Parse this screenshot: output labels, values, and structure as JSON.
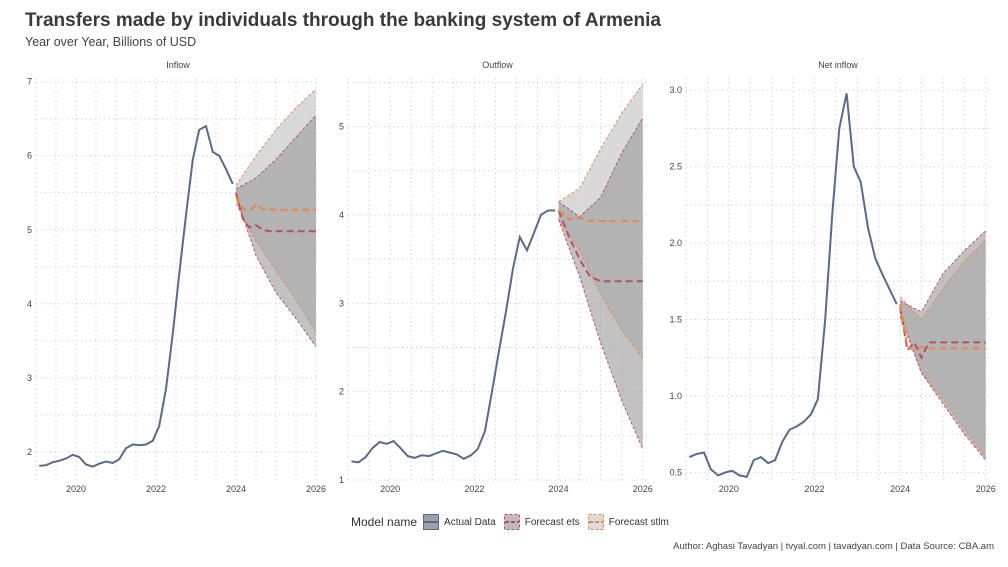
{
  "title": "Transfers made by individuals through the banking system of Armenia",
  "subtitle": "Year over Year, Billions of USD",
  "caption": "Author: Aghasi Tavadyan   |   tvyal.com   |   tavadyan.com   |   Data Source: CBA.am",
  "legend": {
    "title": "Model name",
    "items": [
      {
        "label": "Actual Data",
        "color": "#5a6b89",
        "style": "solid"
      },
      {
        "label": "Forecast ets",
        "color": "#c0456a",
        "style": "dashed"
      },
      {
        "label": "Forecast stlm",
        "color": "#e98646",
        "style": "dashed"
      }
    ]
  },
  "chart_data": [
    {
      "type": "line",
      "panel": "Inflow",
      "xticks": [
        2020,
        2022,
        2024,
        2026
      ],
      "yticks": [
        2,
        3,
        4,
        5,
        6,
        7
      ],
      "xlim": [
        2019.0,
        2026.1
      ],
      "ylim": [
        1.62,
        7.05
      ],
      "actual": [
        [
          2019.08,
          1.81
        ],
        [
          2019.25,
          1.82
        ],
        [
          2019.42,
          1.86
        ],
        [
          2019.58,
          1.88
        ],
        [
          2019.75,
          1.91
        ],
        [
          2019.92,
          1.96
        ],
        [
          2020.08,
          1.93
        ],
        [
          2020.25,
          1.83
        ],
        [
          2020.42,
          1.8
        ],
        [
          2020.58,
          1.84
        ],
        [
          2020.75,
          1.87
        ],
        [
          2020.92,
          1.85
        ],
        [
          2021.08,
          1.9
        ],
        [
          2021.25,
          2.05
        ],
        [
          2021.42,
          2.1
        ],
        [
          2021.58,
          2.09
        ],
        [
          2021.75,
          2.1
        ],
        [
          2021.92,
          2.15
        ],
        [
          2022.08,
          2.35
        ],
        [
          2022.25,
          2.85
        ],
        [
          2022.42,
          3.6
        ],
        [
          2022.58,
          4.4
        ],
        [
          2022.75,
          5.2
        ],
        [
          2022.92,
          5.95
        ],
        [
          2023.08,
          6.35
        ],
        [
          2023.25,
          6.4
        ],
        [
          2023.42,
          6.05
        ],
        [
          2023.58,
          6.0
        ],
        [
          2023.75,
          5.82
        ],
        [
          2023.92,
          5.62
        ]
      ],
      "forecast_ets": {
        "mean": [
          [
            2024.0,
            5.5
          ],
          [
            2024.17,
            5.15
          ],
          [
            2024.33,
            5.03
          ],
          [
            2024.5,
            5.06
          ],
          [
            2024.67,
            5.0
          ],
          [
            2024.83,
            4.98
          ],
          [
            2025.0,
            4.98
          ],
          [
            2026.0,
            4.98
          ]
        ],
        "upper": [
          [
            2024.0,
            5.55
          ],
          [
            2024.5,
            5.7
          ],
          [
            2025.0,
            5.95
          ],
          [
            2025.5,
            6.25
          ],
          [
            2026.0,
            6.55
          ]
        ],
        "lower": [
          [
            2024.0,
            5.45
          ],
          [
            2024.5,
            4.65
          ],
          [
            2025.0,
            4.15
          ],
          [
            2025.5,
            3.8
          ],
          [
            2026.0,
            3.42
          ]
        ]
      },
      "forecast_stlm": {
        "mean": [
          [
            2024.0,
            5.45
          ],
          [
            2024.17,
            5.28
          ],
          [
            2024.33,
            5.26
          ],
          [
            2024.5,
            5.33
          ],
          [
            2024.67,
            5.28
          ],
          [
            2025.0,
            5.27
          ],
          [
            2026.0,
            5.27
          ]
        ],
        "upper": [
          [
            2024.0,
            5.6
          ],
          [
            2024.5,
            6.0
          ],
          [
            2025.0,
            6.35
          ],
          [
            2025.5,
            6.65
          ],
          [
            2026.0,
            6.9
          ]
        ],
        "lower": [
          [
            2024.0,
            5.35
          ],
          [
            2024.5,
            4.85
          ],
          [
            2025.0,
            4.45
          ],
          [
            2025.5,
            4.05
          ],
          [
            2026.0,
            3.62
          ]
        ]
      }
    },
    {
      "type": "line",
      "panel": "Outflow",
      "xticks": [
        2020,
        2022,
        2024,
        2026
      ],
      "yticks": [
        1,
        2,
        3,
        4,
        5
      ],
      "xlim": [
        2019.0,
        2026.1
      ],
      "ylim": [
        1.0,
        5.55
      ],
      "actual": [
        [
          2019.08,
          1.21
        ],
        [
          2019.25,
          1.2
        ],
        [
          2019.42,
          1.26
        ],
        [
          2019.58,
          1.36
        ],
        [
          2019.75,
          1.43
        ],
        [
          2019.92,
          1.41
        ],
        [
          2020.08,
          1.44
        ],
        [
          2020.25,
          1.36
        ],
        [
          2020.42,
          1.27
        ],
        [
          2020.58,
          1.25
        ],
        [
          2020.75,
          1.28
        ],
        [
          2020.92,
          1.27
        ],
        [
          2021.08,
          1.3
        ],
        [
          2021.25,
          1.33
        ],
        [
          2021.42,
          1.31
        ],
        [
          2021.58,
          1.29
        ],
        [
          2021.75,
          1.24
        ],
        [
          2021.92,
          1.28
        ],
        [
          2022.08,
          1.35
        ],
        [
          2022.25,
          1.55
        ],
        [
          2022.42,
          2.0
        ],
        [
          2022.58,
          2.45
        ],
        [
          2022.75,
          2.9
        ],
        [
          2022.92,
          3.4
        ],
        [
          2023.08,
          3.75
        ],
        [
          2023.25,
          3.6
        ],
        [
          2023.42,
          3.8
        ],
        [
          2023.58,
          4.0
        ],
        [
          2023.75,
          4.05
        ],
        [
          2023.92,
          4.05
        ]
      ],
      "forecast_ets": {
        "mean": [
          [
            2024.0,
            4.05
          ],
          [
            2024.25,
            3.75
          ],
          [
            2024.5,
            3.5
          ],
          [
            2024.75,
            3.3
          ],
          [
            2025.0,
            3.25
          ],
          [
            2026.0,
            3.25
          ]
        ],
        "upper": [
          [
            2024.0,
            4.15
          ],
          [
            2024.5,
            3.98
          ],
          [
            2025.0,
            4.2
          ],
          [
            2025.5,
            4.7
          ],
          [
            2026.0,
            5.1
          ]
        ],
        "lower": [
          [
            2024.0,
            3.95
          ],
          [
            2024.5,
            3.3
          ],
          [
            2025.0,
            2.55
          ],
          [
            2025.5,
            1.9
          ],
          [
            2026.0,
            1.35
          ]
        ]
      },
      "forecast_stlm": {
        "mean": [
          [
            2024.0,
            4.05
          ],
          [
            2024.25,
            3.95
          ],
          [
            2024.5,
            3.97
          ],
          [
            2024.75,
            3.93
          ],
          [
            2025.0,
            3.93
          ],
          [
            2026.0,
            3.93
          ]
        ],
        "upper": [
          [
            2024.0,
            4.15
          ],
          [
            2024.5,
            4.3
          ],
          [
            2025.0,
            4.75
          ],
          [
            2025.5,
            5.15
          ],
          [
            2026.0,
            5.48
          ]
        ],
        "lower": [
          [
            2024.0,
            3.95
          ],
          [
            2024.5,
            3.6
          ],
          [
            2025.0,
            3.1
          ],
          [
            2025.5,
            2.7
          ],
          [
            2026.0,
            2.38
          ]
        ]
      }
    },
    {
      "type": "line",
      "panel": "Net inflow",
      "xticks": [
        2020,
        2022,
        2024,
        2026
      ],
      "yticks": [
        0.5,
        1.0,
        1.5,
        2.0,
        2.5,
        3.0
      ],
      "ytick_labels": [
        "0.5",
        "1.0",
        "1.5",
        "2.0",
        "2.5",
        "3.0"
      ],
      "xlim": [
        2019.0,
        2026.1
      ],
      "ylim": [
        0.45,
        3.08
      ],
      "actual": [
        [
          2019.08,
          0.6
        ],
        [
          2019.25,
          0.62
        ],
        [
          2019.42,
          0.63
        ],
        [
          2019.58,
          0.52
        ],
        [
          2019.75,
          0.48
        ],
        [
          2019.92,
          0.5
        ],
        [
          2020.08,
          0.51
        ],
        [
          2020.25,
          0.48
        ],
        [
          2020.42,
          0.47
        ],
        [
          2020.58,
          0.58
        ],
        [
          2020.75,
          0.6
        ],
        [
          2020.92,
          0.56
        ],
        [
          2021.08,
          0.58
        ],
        [
          2021.25,
          0.7
        ],
        [
          2021.42,
          0.78
        ],
        [
          2021.58,
          0.8
        ],
        [
          2021.75,
          0.83
        ],
        [
          2021.92,
          0.88
        ],
        [
          2022.08,
          0.98
        ],
        [
          2022.25,
          1.5
        ],
        [
          2022.42,
          2.2
        ],
        [
          2022.58,
          2.75
        ],
        [
          2022.75,
          2.98
        ],
        [
          2022.92,
          2.5
        ],
        [
          2023.08,
          2.4
        ],
        [
          2023.25,
          2.1
        ],
        [
          2023.42,
          1.9
        ],
        [
          2023.58,
          1.8
        ],
        [
          2023.75,
          1.7
        ],
        [
          2023.92,
          1.6
        ]
      ],
      "forecast_ets": {
        "mean": [
          [
            2024.0,
            1.58
          ],
          [
            2024.17,
            1.3
          ],
          [
            2024.33,
            1.35
          ],
          [
            2024.5,
            1.25
          ],
          [
            2024.67,
            1.35
          ],
          [
            2024.83,
            1.35
          ],
          [
            2025.0,
            1.35
          ],
          [
            2026.0,
            1.35
          ]
        ],
        "upper": [
          [
            2024.0,
            1.62
          ],
          [
            2024.5,
            1.55
          ],
          [
            2025.0,
            1.8
          ],
          [
            2025.5,
            1.95
          ],
          [
            2026.0,
            2.08
          ]
        ],
        "lower": [
          [
            2024.0,
            1.52
          ],
          [
            2024.5,
            1.15
          ],
          [
            2025.0,
            0.95
          ],
          [
            2025.5,
            0.75
          ],
          [
            2026.0,
            0.58
          ]
        ]
      },
      "forecast_stlm": {
        "mean": [
          [
            2024.0,
            1.6
          ],
          [
            2024.17,
            1.32
          ],
          [
            2024.33,
            1.3
          ],
          [
            2024.5,
            1.32
          ],
          [
            2024.67,
            1.31
          ],
          [
            2025.0,
            1.31
          ],
          [
            2026.0,
            1.31
          ]
        ],
        "upper": [
          [
            2024.0,
            1.65
          ],
          [
            2024.5,
            1.5
          ],
          [
            2025.0,
            1.7
          ],
          [
            2025.5,
            1.88
          ],
          [
            2026.0,
            2.02
          ]
        ],
        "lower": [
          [
            2024.0,
            1.55
          ],
          [
            2024.5,
            1.15
          ],
          [
            2025.0,
            0.98
          ],
          [
            2025.5,
            0.78
          ],
          [
            2026.0,
            0.6
          ]
        ]
      }
    }
  ]
}
